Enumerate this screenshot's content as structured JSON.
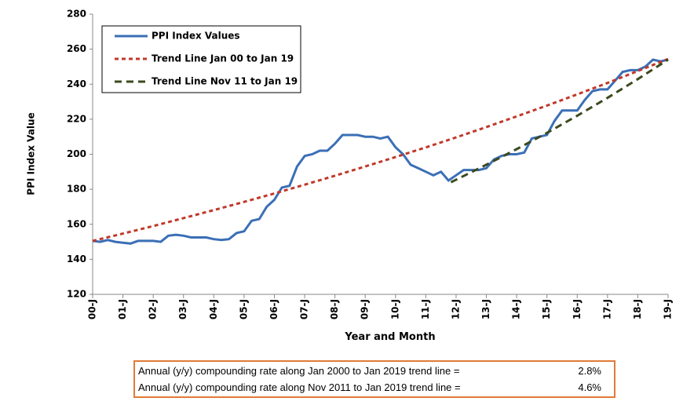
{
  "chart_data": {
    "type": "line",
    "y_axis_label": "PPI Index Value",
    "x_axis_label": "Year and Month",
    "xlim": [
      2000,
      2019
    ],
    "xticks": [
      {
        "value": 2000,
        "label": "00-J"
      },
      {
        "value": 2001,
        "label": "01-J"
      },
      {
        "value": 2002,
        "label": "02-J"
      },
      {
        "value": 2003,
        "label": "03-J"
      },
      {
        "value": 2004,
        "label": "04-J"
      },
      {
        "value": 2005,
        "label": "05-J"
      },
      {
        "value": 2006,
        "label": "06-J"
      },
      {
        "value": 2007,
        "label": "07-J"
      },
      {
        "value": 2008,
        "label": "08-J"
      },
      {
        "value": 2009,
        "label": "09-J"
      },
      {
        "value": 2010,
        "label": "10-J"
      },
      {
        "value": 2011,
        "label": "11-J"
      },
      {
        "value": 2012,
        "label": "12-J"
      },
      {
        "value": 2013,
        "label": "13-J"
      },
      {
        "value": 2014,
        "label": "14-J"
      },
      {
        "value": 2015,
        "label": "15-J"
      },
      {
        "value": 2016,
        "label": "16-J"
      },
      {
        "value": 2017,
        "label": "17-J"
      },
      {
        "value": 2018,
        "label": "18-J"
      },
      {
        "value": 2019,
        "label": "19-J"
      }
    ],
    "ylim": [
      120,
      280
    ],
    "yticks": [
      120,
      140,
      160,
      180,
      200,
      220,
      240,
      260,
      280
    ],
    "grid": false,
    "legend": "upper left",
    "series": [
      {
        "name": "PPI Index Values",
        "color": "#3b6fb6",
        "dash": "solid",
        "x": [
          2000,
          2000.25,
          2000.5,
          2000.75,
          2001,
          2001.25,
          2001.5,
          2001.75,
          2002,
          2002.25,
          2002.5,
          2002.75,
          2003,
          2003.25,
          2003.5,
          2003.75,
          2004,
          2004.25,
          2004.5,
          2004.75,
          2005,
          2005.25,
          2005.5,
          2005.75,
          2006,
          2006.25,
          2006.5,
          2006.75,
          2007,
          2007.25,
          2007.5,
          2007.75,
          2008,
          2008.25,
          2008.5,
          2008.75,
          2009,
          2009.25,
          2009.5,
          2009.75,
          2010,
          2010.25,
          2010.5,
          2010.75,
          2011,
          2011.25,
          2011.5,
          2011.75,
          2012,
          2012.25,
          2012.5,
          2012.75,
          2013,
          2013.25,
          2013.5,
          2013.75,
          2014,
          2014.25,
          2014.5,
          2014.75,
          2015,
          2015.25,
          2015.5,
          2015.75,
          2016,
          2016.25,
          2016.5,
          2016.75,
          2017,
          2017.25,
          2017.5,
          2017.75,
          2018,
          2018.25,
          2018.5,
          2018.75,
          2019
        ],
        "values": [
          150.5,
          150,
          151,
          150,
          149.5,
          149,
          150.5,
          150.5,
          150.5,
          150,
          153.5,
          154,
          153.5,
          152.5,
          152.5,
          152.5,
          151.5,
          151,
          151.5,
          155,
          156,
          162,
          163,
          170,
          174,
          181,
          182,
          193,
          199,
          200,
          202,
          202,
          206,
          211,
          211,
          211,
          210,
          210,
          209,
          210,
          204,
          200,
          194,
          192,
          190,
          188,
          190,
          185,
          188,
          191,
          191,
          191,
          192,
          197,
          199,
          200,
          200,
          201,
          209,
          210,
          211,
          219,
          225,
          225,
          225,
          231,
          236,
          237,
          237,
          242,
          247,
          248,
          248,
          250,
          254,
          253,
          254
        ]
      },
      {
        "name": "Trend Line Jan 00 to Jan 19",
        "color": "#c0392b",
        "dash": "short",
        "x": [
          2000,
          2001,
          2002,
          2003,
          2004,
          2005,
          2006,
          2007,
          2008,
          2009,
          2010,
          2011,
          2012,
          2013,
          2014,
          2015,
          2016,
          2017,
          2018,
          2019
        ],
        "values": [
          150.5,
          154.7,
          159.0,
          163.5,
          168.1,
          172.8,
          177.6,
          182.6,
          187.7,
          193.0,
          198.4,
          203.9,
          209.6,
          215.5,
          221.6,
          227.8,
          234.2,
          240.7,
          247.5,
          254.4
        ]
      },
      {
        "name": "Trend Line Nov 11 to Jan 19",
        "color": "#3c4a1e",
        "dash": "long",
        "x": [
          2011.83,
          2013,
          2014,
          2015,
          2016,
          2017,
          2018,
          2019
        ],
        "values": [
          184,
          194.0,
          202.9,
          212.2,
          222.0,
          232.2,
          242.9,
          254.0
        ]
      }
    ]
  },
  "notes": [
    {
      "text": "Annual (y/y) compounding rate along Jan 2000 to Jan 2019 trend line =",
      "rate": "2.8%"
    },
    {
      "text": "Annual (y/y) compounding rate along Nov 2011 to Jan 2019 trend line =",
      "rate": "4.6%"
    }
  ]
}
